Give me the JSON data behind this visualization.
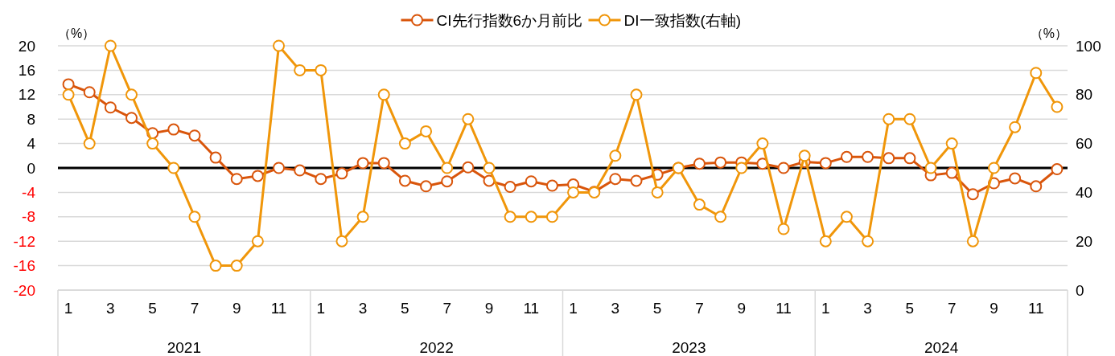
{
  "chart_data": {
    "type": "line",
    "categories": [
      "1",
      null,
      "3",
      null,
      "5",
      null,
      "7",
      null,
      "9",
      null,
      "11",
      null,
      "1",
      null,
      "3",
      null,
      "5",
      null,
      "7",
      null,
      "9",
      null,
      "11",
      null,
      "1",
      null,
      "3",
      null,
      "5",
      null,
      "7",
      null,
      "9",
      null,
      "11",
      null,
      "1",
      null,
      "3",
      null,
      "5",
      null,
      "7",
      null,
      "9",
      null,
      "11",
      null
    ],
    "series": [
      {
        "name": "CI先行指数6か月前比",
        "color": "#d9550b",
        "values": [
          13.7,
          12.4,
          9.9,
          8.2,
          5.7,
          6.3,
          5.3,
          1.7,
          -1.8,
          -1.3,
          0,
          -0.4,
          -1.8,
          -0.9,
          0.8,
          0.8,
          -2.1,
          -3.0,
          -2.2,
          0.1,
          -2.1,
          -3.1,
          -2.2,
          -2.9,
          -2.7,
          -3.9,
          -1.8,
          -2.1,
          -1.1,
          0,
          0.7,
          0.9,
          0.9,
          0.7,
          0,
          1.0,
          0.8,
          1.8,
          1.8,
          1.6,
          1.6,
          -1.2,
          -0.8,
          -4.3,
          -2.5,
          -1.7,
          -3.0,
          -0.2
        ]
      },
      {
        "name": "DI一致指数(右軸)",
        "color": "#f0960a",
        "axis": "y2",
        "values": [
          80,
          60,
          100,
          80,
          60,
          50,
          30,
          10,
          10,
          20,
          100,
          90,
          90,
          20,
          30,
          80,
          60,
          65,
          50,
          70,
          50,
          30,
          30,
          30,
          40,
          40,
          55,
          80,
          40,
          50,
          35,
          30,
          50,
          60,
          25,
          55,
          20,
          30,
          20,
          70,
          70,
          50,
          60,
          20,
          50,
          66.7,
          88.9,
          75
        ]
      }
    ],
    "ylabel": "（%）",
    "y2label": "（%）",
    "ylim": [
      -20,
      20
    ],
    "yticks": [
      -20,
      -16,
      -12,
      -8,
      -4,
      0,
      4,
      8,
      12,
      16,
      20
    ],
    "y2lim": [
      0,
      100
    ],
    "y2ticks": [
      0,
      20,
      40,
      60,
      80,
      100
    ],
    "ref_lines": [
      {
        "axis": "y",
        "value": 0,
        "color": "#000000"
      }
    ],
    "annotations": [
      "2021",
      "2022",
      "2023",
      "2024"
    ],
    "grid": "y",
    "legend": "top",
    "marker": "circle",
    "line_style": "solid"
  }
}
